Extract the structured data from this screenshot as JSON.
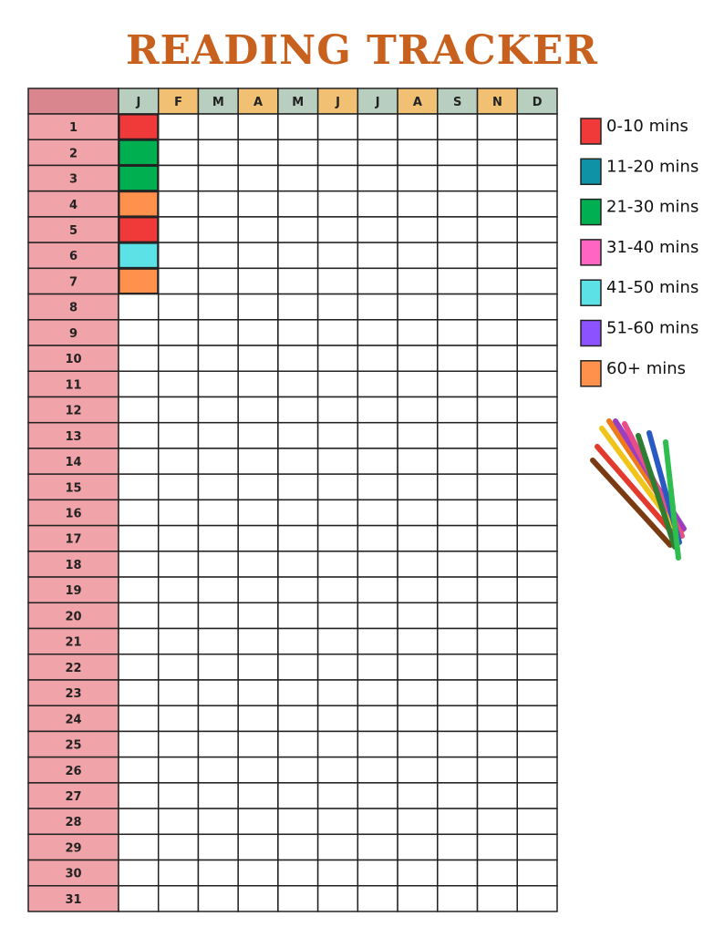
{
  "title": "READING TRACKER",
  "table": {
    "months": [
      "J",
      "F",
      "M",
      "A",
      "M",
      "J",
      "J",
      "A",
      "S",
      "N",
      "D"
    ],
    "days": [
      "1",
      "2",
      "3",
      "4",
      "5",
      "6",
      "7",
      "8",
      "9",
      "10",
      "11",
      "12",
      "13",
      "14",
      "15",
      "16",
      "17",
      "18",
      "19",
      "20",
      "21",
      "22",
      "23",
      "24",
      "25",
      "26",
      "27",
      "28",
      "29",
      "30",
      "31"
    ],
    "entries": [
      {
        "month": 0,
        "day": 0,
        "legend": 0
      },
      {
        "month": 0,
        "day": 1,
        "legend": 2
      },
      {
        "month": 0,
        "day": 2,
        "legend": 2
      },
      {
        "month": 0,
        "day": 3,
        "legend": 6
      },
      {
        "month": 0,
        "day": 4,
        "legend": 0
      },
      {
        "month": 0,
        "day": 5,
        "legend": 4
      },
      {
        "month": 0,
        "day": 6,
        "legend": 6
      }
    ]
  },
  "legend": [
    {
      "label": "0-10 mins",
      "color": "#f03a3a"
    },
    {
      "label": "11-20 mins",
      "color": "#0f91a6"
    },
    {
      "label": "21-30 mins",
      "color": "#00b050"
    },
    {
      "label": "31-40 mins",
      "color": "#ff66c4"
    },
    {
      "label": "41-50 mins",
      "color": "#5ce1e6"
    },
    {
      "label": "51-60 mins",
      "color": "#8c52ff"
    },
    {
      "label": "60+ mins",
      "color": "#ff914d"
    }
  ]
}
